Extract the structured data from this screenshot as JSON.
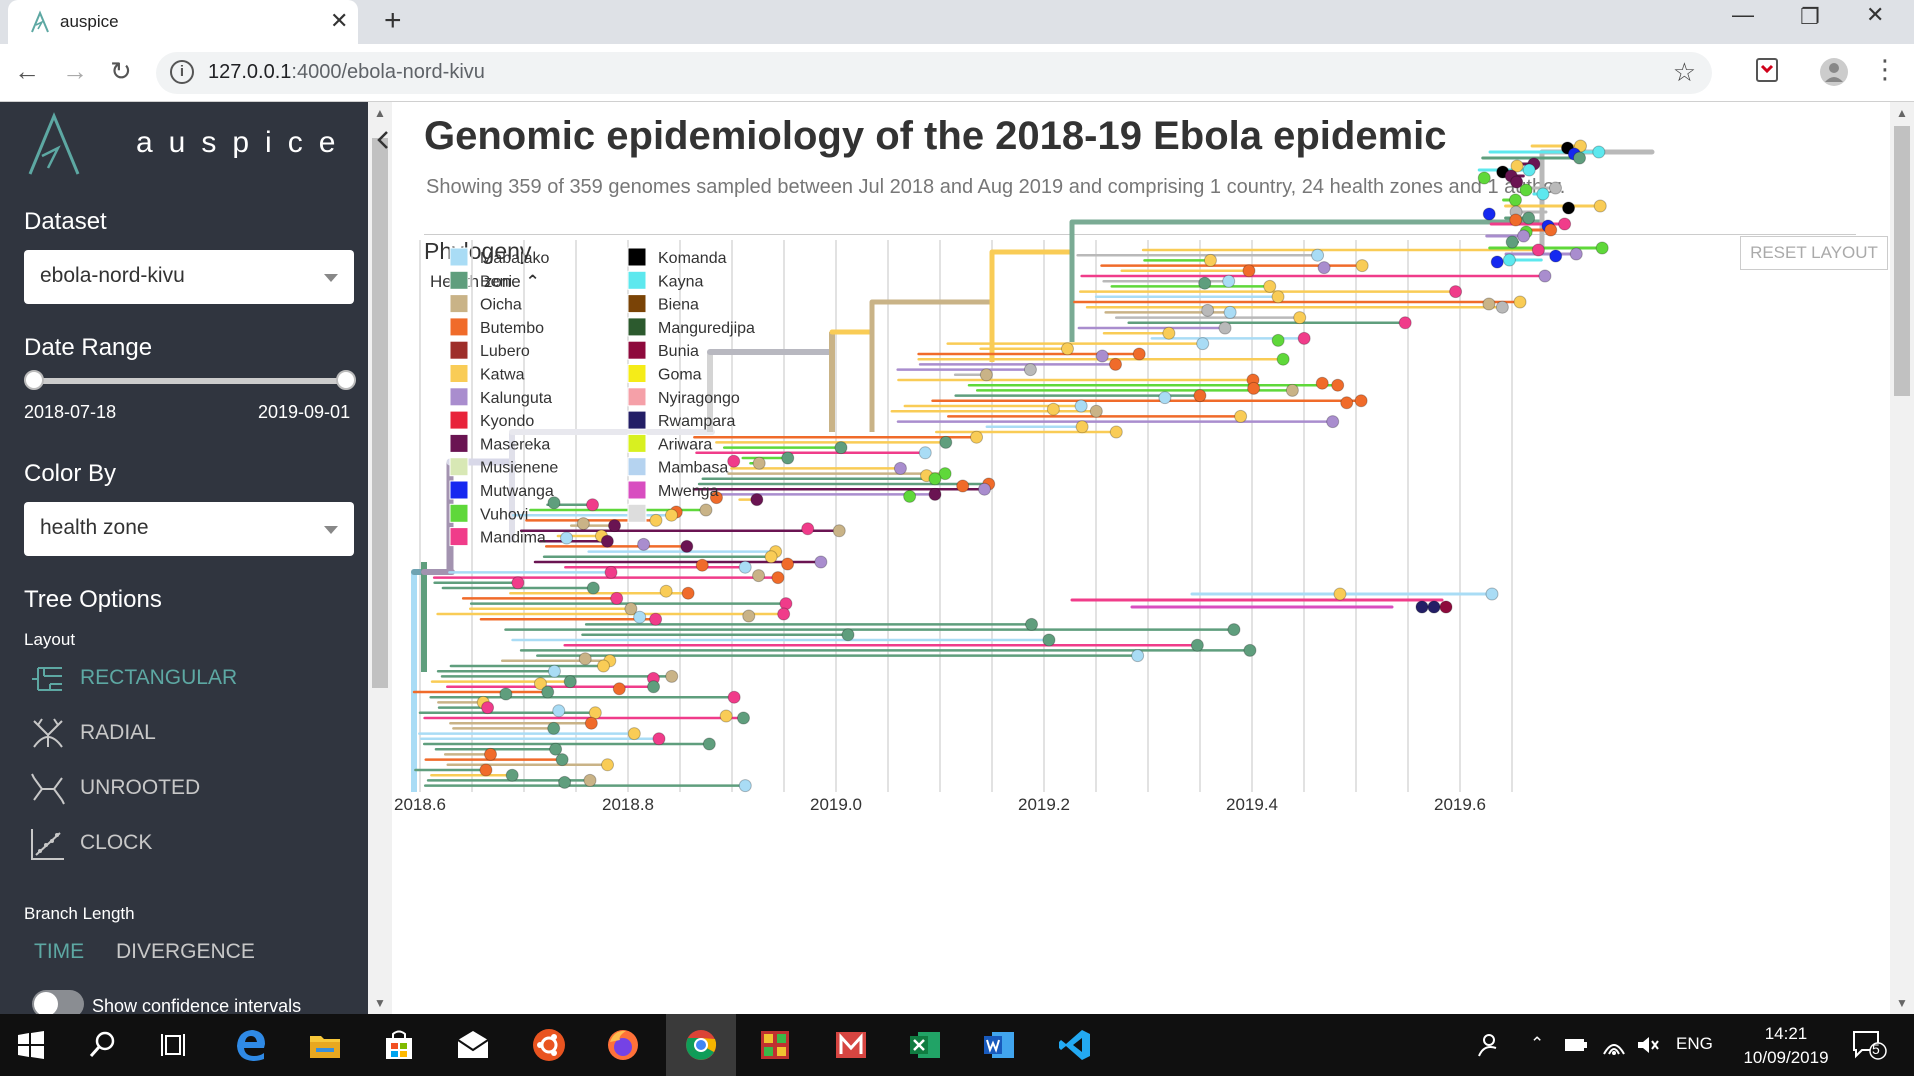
{
  "browser": {
    "tab_title": "auspice",
    "url_host": "127.0.0.1",
    "url_rest": ":4000/ebola-nord-kivu"
  },
  "sidebar": {
    "logo_text": "auspice",
    "dataset_label": "Dataset",
    "dataset_value": "ebola-nord-kivu",
    "date_range_label": "Date Range",
    "date_start": "2018-07-18",
    "date_end": "2019-09-01",
    "date_range_position": [
      0.0,
      1.0
    ],
    "color_by_label": "Color By",
    "color_by_value": "health zone",
    "tree_options_label": "Tree Options",
    "layout_label": "Layout",
    "layouts": [
      {
        "label": "RECTANGULAR",
        "icon": "rectangular-tree-icon",
        "active": true
      },
      {
        "label": "RADIAL",
        "icon": "radial-tree-icon",
        "active": false
      },
      {
        "label": "UNROOTED",
        "icon": "unrooted-tree-icon",
        "active": false
      },
      {
        "label": "CLOCK",
        "icon": "clock-tree-icon",
        "active": false
      }
    ],
    "branch_length_label": "Branch Length",
    "branch_options": [
      {
        "label": "TIME",
        "active": true
      },
      {
        "label": "DIVERGENCE",
        "active": false
      }
    ],
    "confidence_label": "Show confidence intervals",
    "confidence_on": false
  },
  "main": {
    "title": "Genomic epidemiology of the 2018-19 Ebola epidemic",
    "subtitle": "Showing 359 of 359 genomes sampled between Jul 2018 and Aug 2019 and comprising 1 country, 24 health zones and 1 author.",
    "panel_title": "Phylogeny",
    "reset_label": "RESET LAYOUT",
    "legend_title": "Health zone"
  },
  "chart_data": {
    "type": "scatter",
    "title": "",
    "xlabel": "",
    "ylabel": "",
    "x_ticks": [
      2018.6,
      2018.8,
      2019.0,
      2019.2,
      2019.4,
      2019.6
    ],
    "xlim": [
      2018.55,
      2019.68
    ],
    "grid": true,
    "legend_placement": "top-left",
    "legend": [
      {
        "name": "Mabalako",
        "color": "#a9dcf5"
      },
      {
        "name": "Beni",
        "color": "#5f9e7d"
      },
      {
        "name": "Oicha",
        "color": "#c9b387"
      },
      {
        "name": "Butembo",
        "color": "#f06b2a"
      },
      {
        "name": "Lubero",
        "color": "#9e2e2a"
      },
      {
        "name": "Katwa",
        "color": "#f9cc56"
      },
      {
        "name": "Kalunguta",
        "color": "#a98dce"
      },
      {
        "name": "Kyondo",
        "color": "#e8233a"
      },
      {
        "name": "Masereka",
        "color": "#6a1452"
      },
      {
        "name": "Musienene",
        "color": "#d8e8b5"
      },
      {
        "name": "Mutwanga",
        "color": "#1528f0"
      },
      {
        "name": "Vuhovi",
        "color": "#5fd83a"
      },
      {
        "name": "Mandima",
        "color": "#f03c8a"
      },
      {
        "name": "Komanda",
        "color": "#000000"
      },
      {
        "name": "Kayna",
        "color": "#5de8ee"
      },
      {
        "name": "Biena",
        "color": "#7a4306"
      },
      {
        "name": "Manguredjipa",
        "color": "#2c5a2e"
      },
      {
        "name": "Bunia",
        "color": "#8e0a3c"
      },
      {
        "name": "Goma",
        "color": "#f5ec18"
      },
      {
        "name": "Nyiragongo",
        "color": "#f5a0a8"
      },
      {
        "name": "Rwampara",
        "color": "#231e66"
      },
      {
        "name": "Ariwara",
        "color": "#d8f020"
      },
      {
        "name": "Mambasa",
        "color": "#b5d3f0"
      },
      {
        "name": "Mwenga",
        "color": "#d84ec0"
      },
      {
        "name": "",
        "color": "#dddddd"
      }
    ]
  },
  "taskbar": {
    "time": "14:21",
    "date": "10/09/2019",
    "language": "ENG",
    "notifications": "5"
  }
}
